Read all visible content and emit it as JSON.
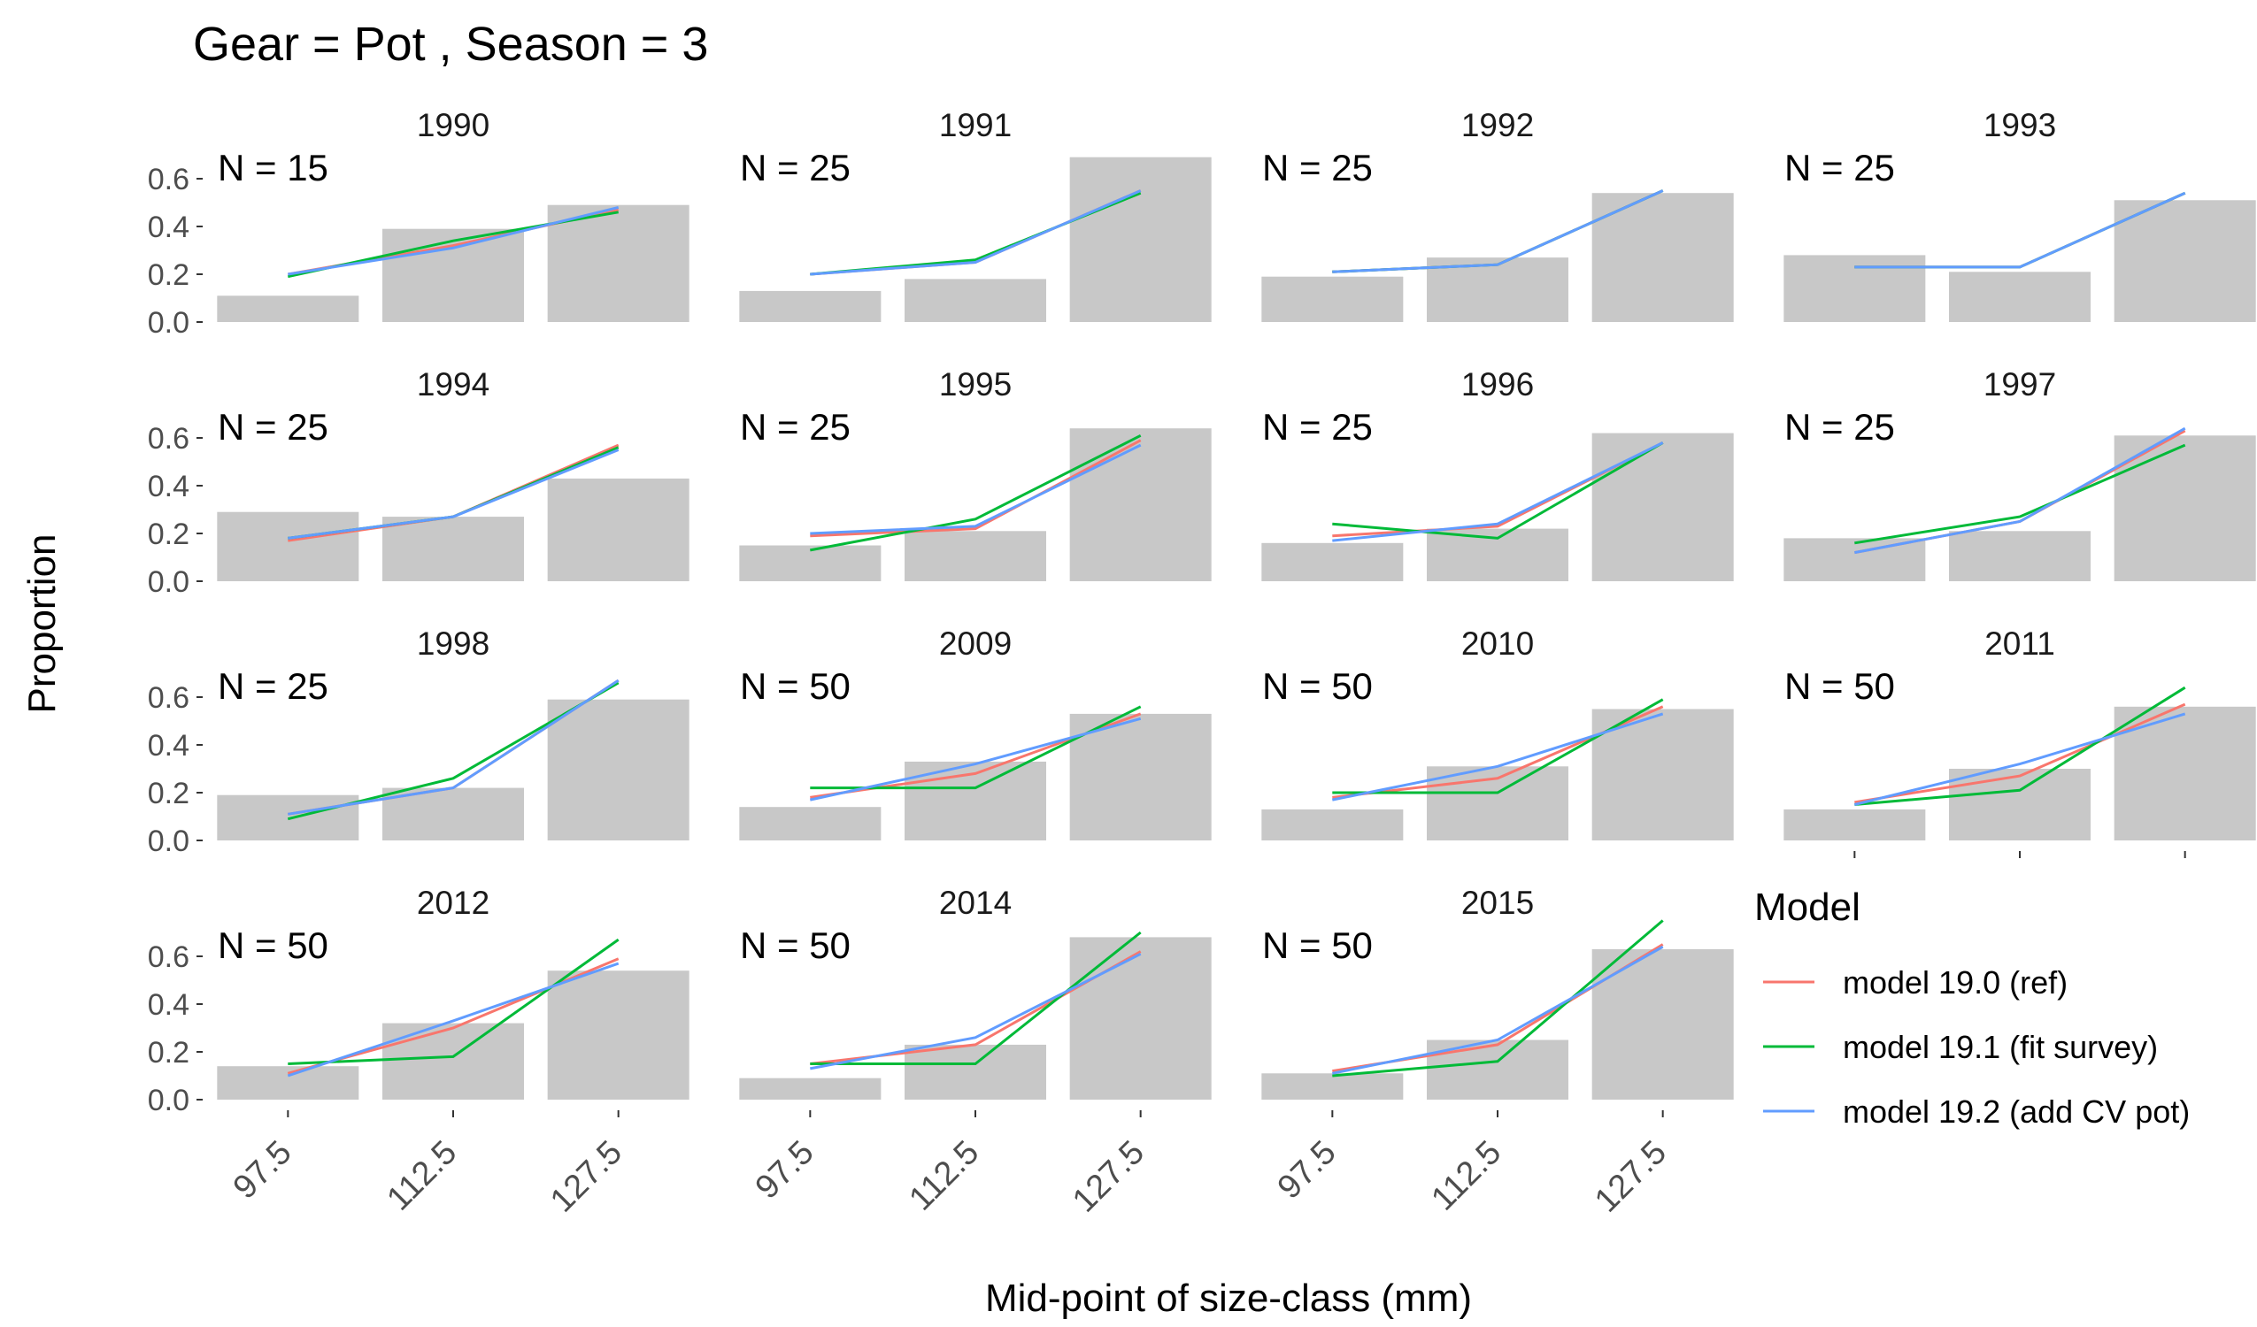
{
  "chart_data": {
    "type": "bar",
    "title": "Gear = Pot , Season = 3",
    "xlabel": "Mid-point of size-class (mm)",
    "ylabel": "Proportion",
    "categories": [
      "97.5",
      "112.5",
      "127.5"
    ],
    "ylim": [
      0,
      0.7
    ],
    "yticks": [
      "0.0",
      "0.2",
      "0.4",
      "0.6"
    ],
    "legend": {
      "title": "Model",
      "position": "right",
      "entries": [
        {
          "name": "model 19.0 (ref)",
          "color": "#F8766D"
        },
        {
          "name": "model 19.1 (fit survey)",
          "color": "#00BA38"
        },
        {
          "name": "model 19.2 (add CV pot)",
          "color": "#619CFF"
        }
      ]
    },
    "panels": [
      {
        "year": "1990",
        "n_label": "N = 15",
        "observed": [
          0.11,
          0.39,
          0.49
        ],
        "series": [
          {
            "name": "model 19.0 (ref)",
            "values": [
              0.2,
              0.32,
              0.47
            ]
          },
          {
            "name": "model 19.1 (fit survey)",
            "values": [
              0.19,
              0.34,
              0.46
            ]
          },
          {
            "name": "model 19.2 (add CV pot)",
            "values": [
              0.2,
              0.31,
              0.48
            ]
          }
        ]
      },
      {
        "year": "1991",
        "n_label": "N = 25",
        "observed": [
          0.13,
          0.18,
          0.69
        ],
        "series": [
          {
            "name": "model 19.0 (ref)",
            "values": [
              0.2,
              0.25,
              0.55
            ]
          },
          {
            "name": "model 19.1 (fit survey)",
            "values": [
              0.2,
              0.26,
              0.54
            ]
          },
          {
            "name": "model 19.2 (add CV pot)",
            "values": [
              0.2,
              0.25,
              0.55
            ]
          }
        ]
      },
      {
        "year": "1992",
        "n_label": "N = 25",
        "observed": [
          0.19,
          0.27,
          0.54
        ],
        "series": [
          {
            "name": "model 19.0 (ref)",
            "values": [
              0.21,
              0.24,
              0.55
            ]
          },
          {
            "name": "model 19.1 (fit survey)",
            "values": [
              0.21,
              0.24,
              0.55
            ]
          },
          {
            "name": "model 19.2 (add CV pot)",
            "values": [
              0.21,
              0.24,
              0.55
            ]
          }
        ]
      },
      {
        "year": "1993",
        "n_label": "N = 25",
        "observed": [
          0.28,
          0.21,
          0.51
        ],
        "series": [
          {
            "name": "model 19.0 (ref)",
            "values": [
              0.23,
              0.23,
              0.54
            ]
          },
          {
            "name": "model 19.1 (fit survey)",
            "values": [
              0.23,
              0.23,
              0.54
            ]
          },
          {
            "name": "model 19.2 (add CV pot)",
            "values": [
              0.23,
              0.23,
              0.54
            ]
          }
        ]
      },
      {
        "year": "1994",
        "n_label": "N = 25",
        "observed": [
          0.29,
          0.27,
          0.43
        ],
        "series": [
          {
            "name": "model 19.0 (ref)",
            "values": [
              0.17,
              0.27,
              0.57
            ]
          },
          {
            "name": "model 19.1 (fit survey)",
            "values": [
              0.18,
              0.27,
              0.56
            ]
          },
          {
            "name": "model 19.2 (add CV pot)",
            "values": [
              0.18,
              0.27,
              0.55
            ]
          }
        ]
      },
      {
        "year": "1995",
        "n_label": "N = 25",
        "observed": [
          0.15,
          0.21,
          0.64
        ],
        "series": [
          {
            "name": "model 19.0 (ref)",
            "values": [
              0.19,
              0.22,
              0.59
            ]
          },
          {
            "name": "model 19.1 (fit survey)",
            "values": [
              0.13,
              0.26,
              0.61
            ]
          },
          {
            "name": "model 19.2 (add CV pot)",
            "values": [
              0.2,
              0.23,
              0.57
            ]
          }
        ]
      },
      {
        "year": "1996",
        "n_label": "N = 25",
        "observed": [
          0.16,
          0.22,
          0.62
        ],
        "series": [
          {
            "name": "model 19.0 (ref)",
            "values": [
              0.19,
              0.23,
              0.58
            ]
          },
          {
            "name": "model 19.1 (fit survey)",
            "values": [
              0.24,
              0.18,
              0.58
            ]
          },
          {
            "name": "model 19.2 (add CV pot)",
            "values": [
              0.17,
              0.24,
              0.58
            ]
          }
        ]
      },
      {
        "year": "1997",
        "n_label": "N = 25",
        "observed": [
          0.18,
          0.21,
          0.61
        ],
        "series": [
          {
            "name": "model 19.0 (ref)",
            "values": [
              0.12,
              0.25,
              0.63
            ]
          },
          {
            "name": "model 19.1 (fit survey)",
            "values": [
              0.16,
              0.27,
              0.57
            ]
          },
          {
            "name": "model 19.2 (add CV pot)",
            "values": [
              0.12,
              0.25,
              0.64
            ]
          }
        ]
      },
      {
        "year": "1998",
        "n_label": "N = 25",
        "observed": [
          0.19,
          0.22,
          0.59
        ],
        "series": [
          {
            "name": "model 19.0 (ref)",
            "values": [
              0.11,
              0.22,
              0.67
            ]
          },
          {
            "name": "model 19.1 (fit survey)",
            "values": [
              0.09,
              0.26,
              0.66
            ]
          },
          {
            "name": "model 19.2 (add CV pot)",
            "values": [
              0.11,
              0.22,
              0.67
            ]
          }
        ]
      },
      {
        "year": "2009",
        "n_label": "N = 50",
        "observed": [
          0.14,
          0.33,
          0.53
        ],
        "series": [
          {
            "name": "model 19.0 (ref)",
            "values": [
              0.18,
              0.28,
              0.53
            ]
          },
          {
            "name": "model 19.1 (fit survey)",
            "values": [
              0.22,
              0.22,
              0.56
            ]
          },
          {
            "name": "model 19.2 (add CV pot)",
            "values": [
              0.17,
              0.32,
              0.51
            ]
          }
        ]
      },
      {
        "year": "2010",
        "n_label": "N = 50",
        "observed": [
          0.13,
          0.31,
          0.55
        ],
        "series": [
          {
            "name": "model 19.0 (ref)",
            "values": [
              0.18,
              0.26,
              0.56
            ]
          },
          {
            "name": "model 19.1 (fit survey)",
            "values": [
              0.2,
              0.2,
              0.59
            ]
          },
          {
            "name": "model 19.2 (add CV pot)",
            "values": [
              0.17,
              0.31,
              0.53
            ]
          }
        ]
      },
      {
        "year": "2011",
        "n_label": "N = 50",
        "observed": [
          0.13,
          0.3,
          0.56
        ],
        "series": [
          {
            "name": "model 19.0 (ref)",
            "values": [
              0.16,
              0.27,
              0.57
            ]
          },
          {
            "name": "model 19.1 (fit survey)",
            "values": [
              0.15,
              0.21,
              0.64
            ]
          },
          {
            "name": "model 19.2 (add CV pot)",
            "values": [
              0.15,
              0.32,
              0.53
            ]
          }
        ]
      },
      {
        "year": "2012",
        "n_label": "N = 50",
        "observed": [
          0.14,
          0.32,
          0.54
        ],
        "series": [
          {
            "name": "model 19.0 (ref)",
            "values": [
              0.11,
              0.3,
              0.59
            ]
          },
          {
            "name": "model 19.1 (fit survey)",
            "values": [
              0.15,
              0.18,
              0.67
            ]
          },
          {
            "name": "model 19.2 (add CV pot)",
            "values": [
              0.1,
              0.33,
              0.57
            ]
          }
        ]
      },
      {
        "year": "2014",
        "n_label": "N = 50",
        "observed": [
          0.09,
          0.23,
          0.68
        ],
        "series": [
          {
            "name": "model 19.0 (ref)",
            "values": [
              0.15,
              0.23,
              0.62
            ]
          },
          {
            "name": "model 19.1 (fit survey)",
            "values": [
              0.15,
              0.15,
              0.7
            ]
          },
          {
            "name": "model 19.2 (add CV pot)",
            "values": [
              0.13,
              0.26,
              0.61
            ]
          }
        ]
      },
      {
        "year": "2015",
        "n_label": "N = 50",
        "observed": [
          0.11,
          0.25,
          0.63
        ],
        "series": [
          {
            "name": "model 19.0 (ref)",
            "values": [
              0.12,
              0.23,
              0.65
            ]
          },
          {
            "name": "model 19.1 (fit survey)",
            "values": [
              0.1,
              0.16,
              0.75
            ]
          },
          {
            "name": "model 19.2 (add CV pot)",
            "values": [
              0.11,
              0.25,
              0.64
            ]
          }
        ]
      }
    ]
  }
}
